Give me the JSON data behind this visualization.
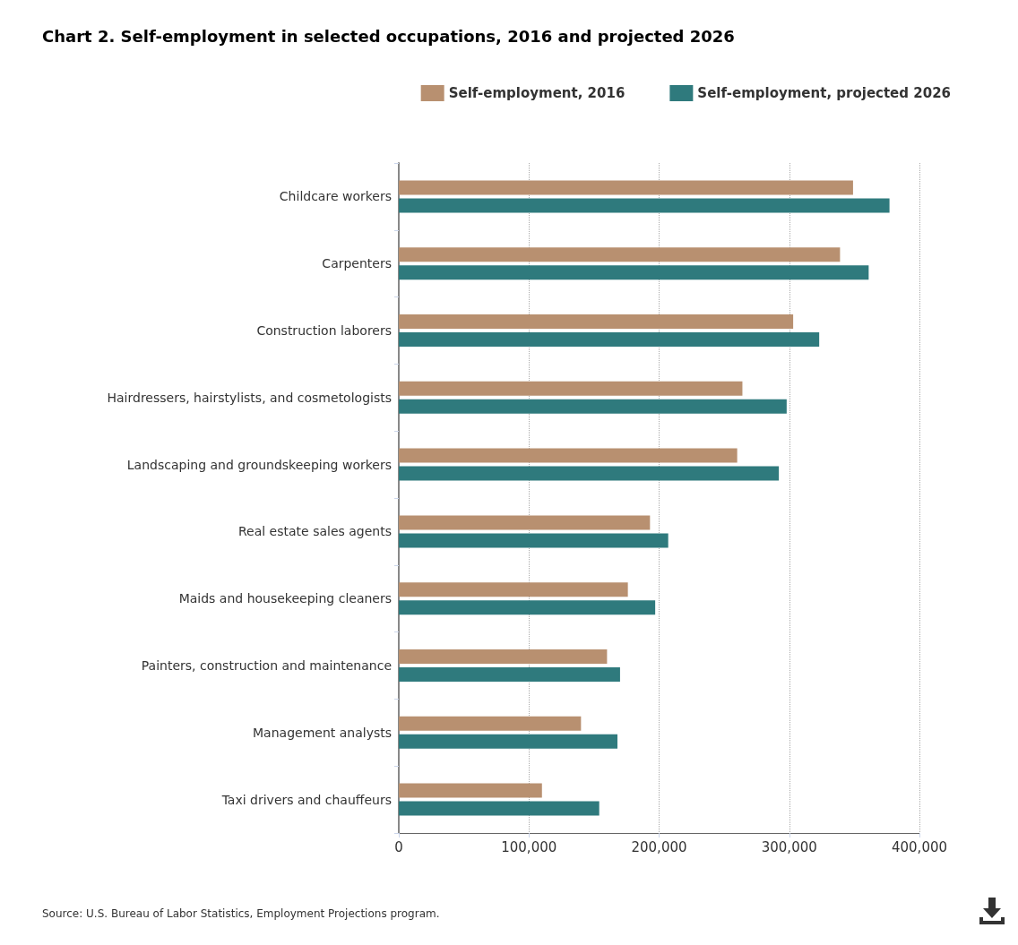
{
  "chart_data": {
    "type": "bar",
    "orientation": "horizontal",
    "title": "Chart 2. Self-employment in selected occupations, 2016 and projected 2026",
    "categories": [
      "Childcare workers",
      "Carpenters",
      "Construction laborers",
      "Hairdressers, hairstylists, and cosmetologists",
      "Landscaping and groundskeeping workers",
      "Real estate sales agents",
      "Maids and housekeeping cleaners",
      "Painters, construction and maintenance",
      "Management analysts",
      "Taxi drivers and chauffeurs"
    ],
    "series": [
      {
        "name": "Self-employment, 2016",
        "color": "#b89070",
        "values": [
          349000,
          339000,
          303000,
          264000,
          260000,
          193000,
          176000,
          160000,
          140000,
          110000
        ]
      },
      {
        "name": "Self-employment, projected 2026",
        "color": "#2f7a7d",
        "values": [
          377000,
          361000,
          323000,
          298000,
          292000,
          207000,
          197000,
          170000,
          168000,
          154000
        ]
      }
    ],
    "xlim": [
      0,
      400000
    ],
    "xticks": [
      {
        "value": 0,
        "label": "0"
      },
      {
        "value": 100000,
        "label": "100,000"
      },
      {
        "value": 200000,
        "label": "200,000"
      },
      {
        "value": 300000,
        "label": "300,000"
      },
      {
        "value": 400000,
        "label": "400,000"
      }
    ],
    "grid": "x",
    "legend": "top right",
    "annotations": [
      "Source: U.S. Bureau of Labor Statistics, Employment Projections program."
    ]
  }
}
